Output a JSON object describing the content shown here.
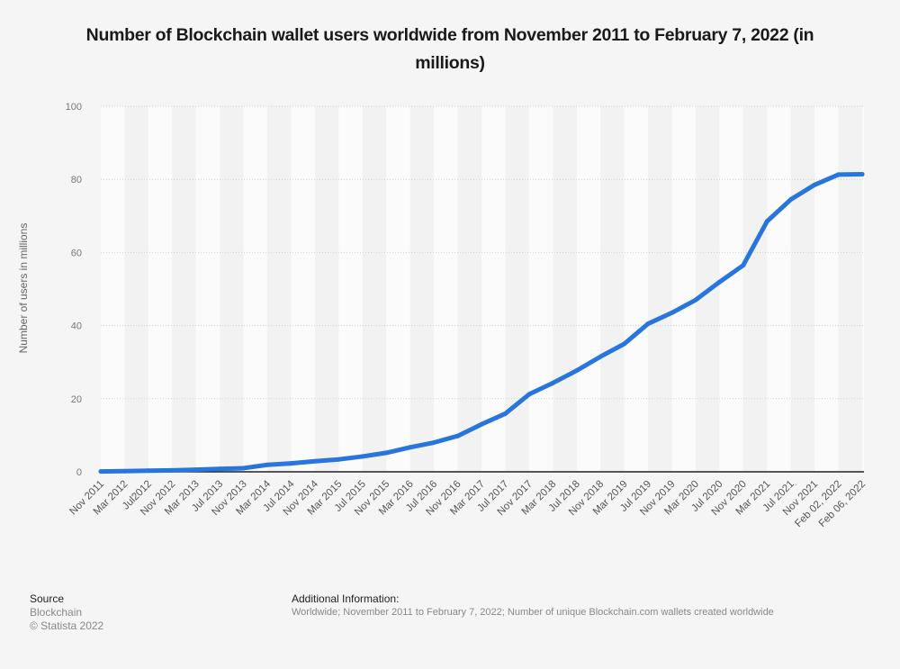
{
  "chart_data": {
    "type": "line",
    "title": "Number of Blockchain wallet users worldwide from November 2011 to February 7, 2022 (in millions)",
    "xlabel": "",
    "ylabel": "Number of users in millions",
    "ylim": [
      0,
      100
    ],
    "yticks": [
      0,
      20,
      40,
      60,
      80,
      100
    ],
    "grid": true,
    "legend": "none",
    "categories": [
      "Nov 2011",
      "Mar 2012",
      "Jul2012",
      "Nov 2012",
      "Mar 2013",
      "Jul 2013",
      "Nov 2013",
      "Mar 2014",
      "Jul 2014",
      "Nov 2014",
      "Mar 2015",
      "Jul 2015",
      "Nov 2015",
      "Mar 2016",
      "Jul 2016",
      "Nov 2016",
      "Mar 2017",
      "Jul 2017",
      "Nov 2017",
      "Mar 2018",
      "Jul 2018",
      "Nov 2018",
      "Mar 2019",
      "Jul 2019",
      "Nov 2019",
      "Mar 2020",
      "Jul 2020",
      "Nov 2020",
      "Mar 2021",
      "Jul 2021",
      "Nov 2021",
      "Feb 02, 2022",
      "Feb 06, 2022"
    ],
    "series": [
      {
        "name": "Number of users in millions",
        "color": "#2876dd",
        "values": [
          0.1,
          0.2,
          0.3,
          0.4,
          0.6,
          0.8,
          1.0,
          1.9,
          2.3,
          2.9,
          3.4,
          4.2,
          5.2,
          6.7,
          8.0,
          9.8,
          13.0,
          15.9,
          21.2,
          24.3,
          27.7,
          31.5,
          35.0,
          40.5,
          43.5,
          47.0,
          51.9,
          56.5,
          68.5,
          74.5,
          78.5,
          81.3,
          81.4
        ]
      }
    ]
  },
  "footer": {
    "source_heading": "Source",
    "source_name": "Blockchain",
    "copyright": "© Statista 2022",
    "additional_heading": "Additional Information:",
    "additional_text": "Worldwide; November 2011 to February 7, 2022; Number of unique Blockchain.com wallets created worldwide"
  }
}
